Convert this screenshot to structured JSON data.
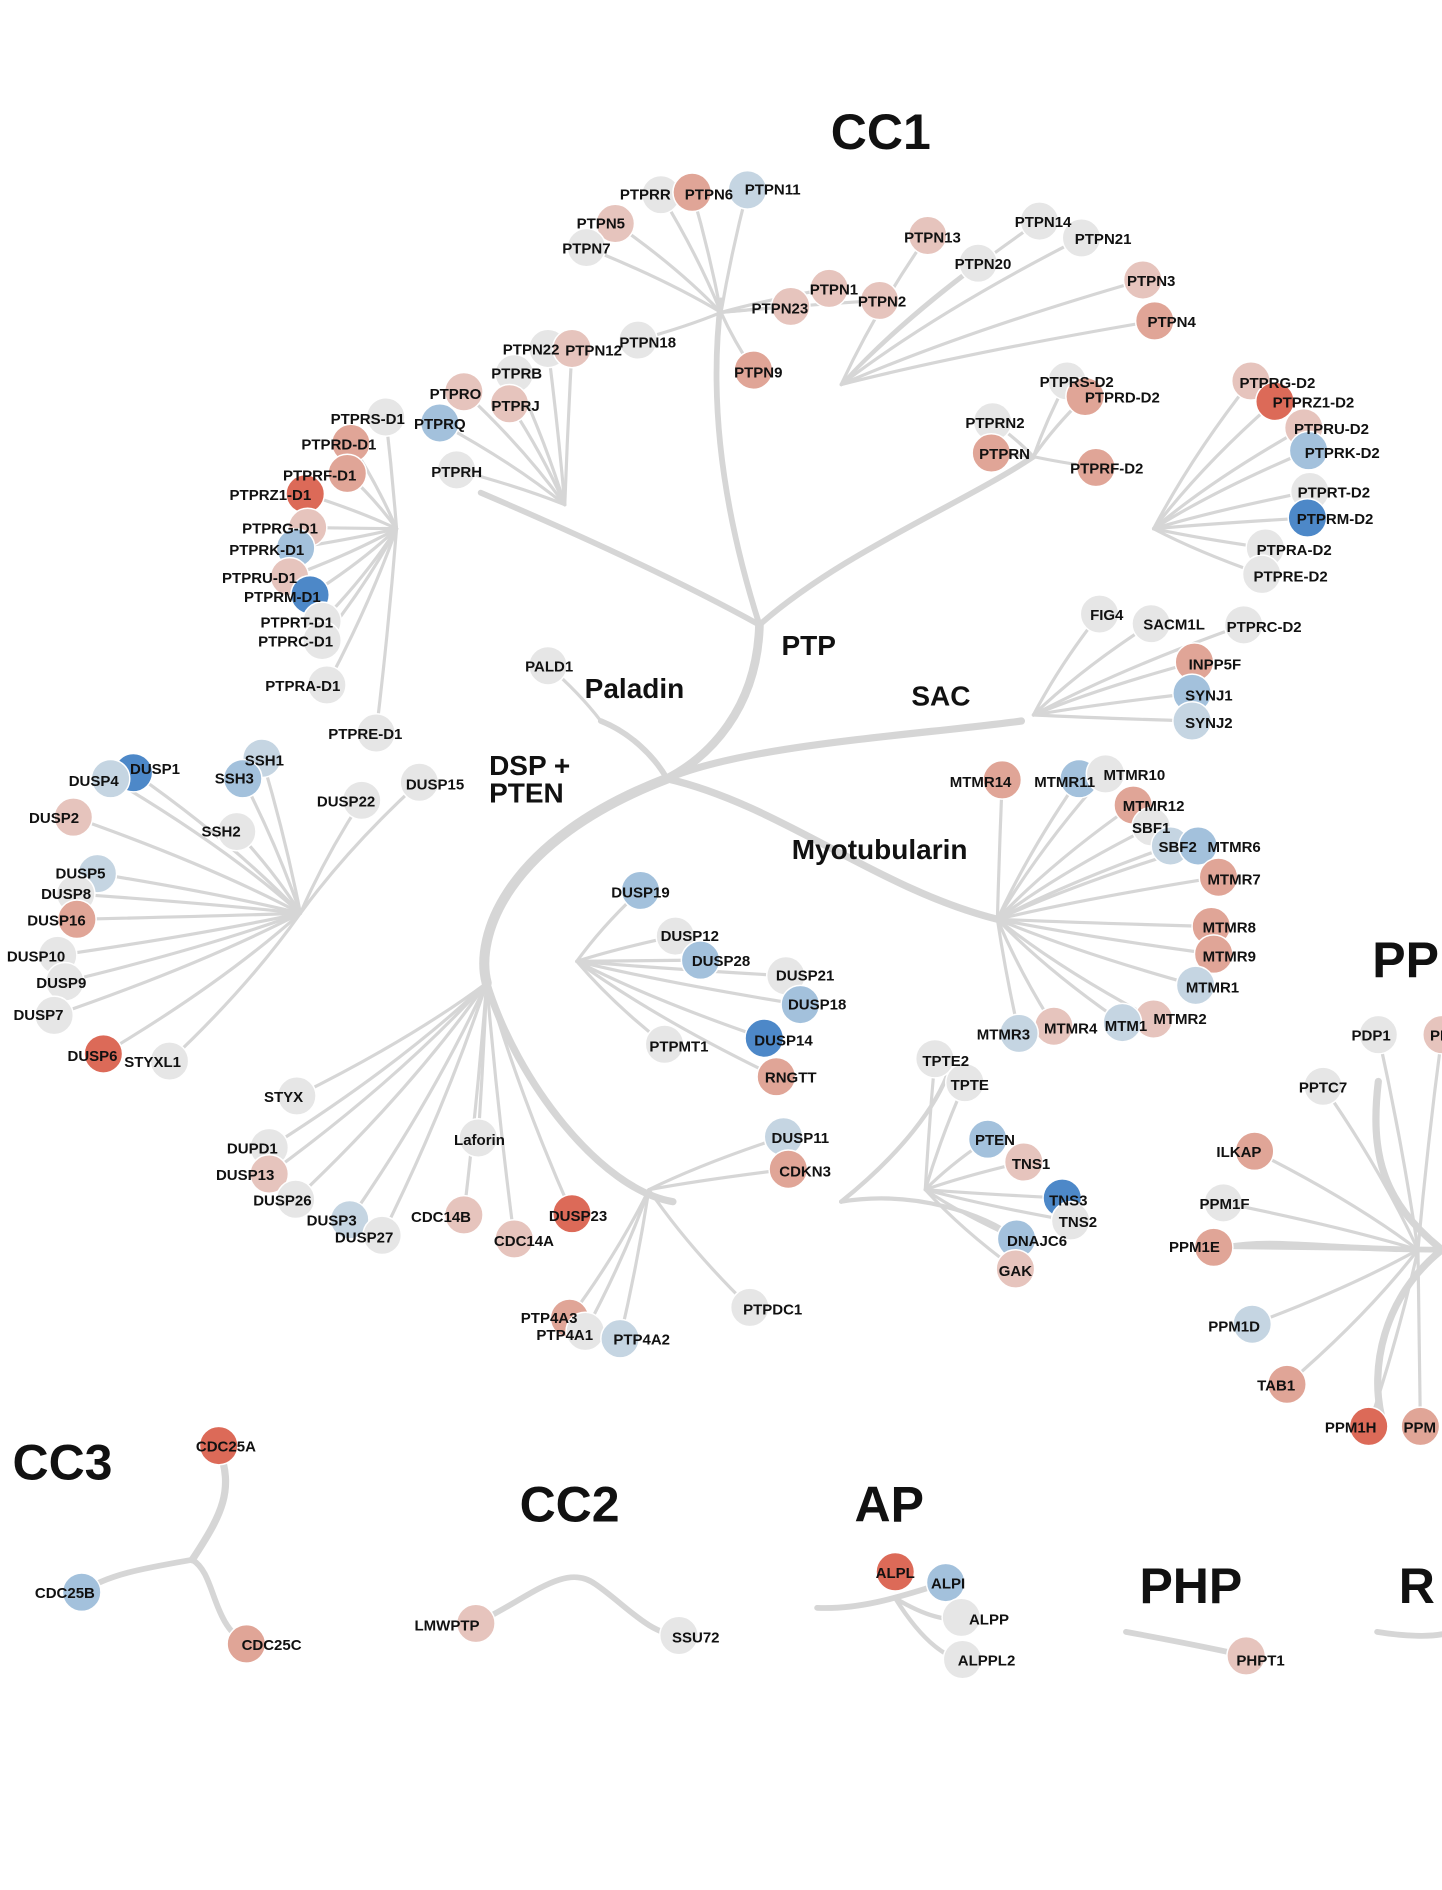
{
  "colors": {
    "branch": "#d6d6d6",
    "gray": "#e6e6e6",
    "pale_red": "#e6c4bd",
    "light_red": "#e0a597",
    "red": "#dc6a58",
    "pale_blue": "#c5d5e2",
    "light_blue": "#a3c1dc",
    "blue": "#4d88c8"
  },
  "families": [
    {
      "key": "cc1",
      "label": "CC1"
    },
    {
      "key": "cc3",
      "label": "CC3"
    },
    {
      "key": "cc2",
      "label": "CC2"
    },
    {
      "key": "ap",
      "label": "AP"
    },
    {
      "key": "php",
      "label": "PHP"
    },
    {
      "key": "ppm",
      "label": "PP"
    },
    {
      "key": "r",
      "label": "R"
    }
  ],
  "groups": [
    {
      "key": "ptp",
      "label": "PTP"
    },
    {
      "key": "paladin",
      "label": "Paladin"
    },
    {
      "key": "sac",
      "label": "SAC"
    },
    {
      "key": "dsp1",
      "label": "DSP +"
    },
    {
      "key": "dsp2",
      "label": "PTEN"
    },
    {
      "key": "myotubularin",
      "label": "Myotubularin"
    }
  ],
  "nodes": [
    {
      "name": "PTPRR",
      "color": "gray"
    },
    {
      "name": "PTPN6",
      "color": "light_red"
    },
    {
      "name": "PTPN11",
      "color": "pale_blue"
    },
    {
      "name": "PTPN5",
      "color": "pale_red"
    },
    {
      "name": "PTPN7",
      "color": "gray"
    },
    {
      "name": "PTPN18",
      "color": "gray"
    },
    {
      "name": "PTPN13",
      "color": "pale_red"
    },
    {
      "name": "PTPN14",
      "color": "gray"
    },
    {
      "name": "PTPN21",
      "color": "gray"
    },
    {
      "name": "PTPN20",
      "color": "gray"
    },
    {
      "name": "PTPN1",
      "color": "pale_red"
    },
    {
      "name": "PTPN2",
      "color": "pale_red"
    },
    {
      "name": "PTPN23",
      "color": "pale_red"
    },
    {
      "name": "PTPN3",
      "color": "pale_red"
    },
    {
      "name": "PTPN4",
      "color": "light_red"
    },
    {
      "name": "PTPN22",
      "color": "gray"
    },
    {
      "name": "PTPN12",
      "color": "pale_red"
    },
    {
      "name": "PTPN9",
      "color": "light_red"
    },
    {
      "name": "PTPRB",
      "color": "gray"
    },
    {
      "name": "PTPRJ",
      "color": "pale_red"
    },
    {
      "name": "PTPRO",
      "color": "pale_red"
    },
    {
      "name": "PTPRQ",
      "color": "light_blue"
    },
    {
      "name": "PTPRH",
      "color": "gray"
    },
    {
      "name": "PTPRS-D2",
      "color": "gray"
    },
    {
      "name": "PTPRD-D2",
      "color": "light_red"
    },
    {
      "name": "PTPRN2",
      "color": "gray"
    },
    {
      "name": "PTPRN",
      "color": "light_red"
    },
    {
      "name": "PTPRF-D2",
      "color": "light_red"
    },
    {
      "name": "PTPRG-D2",
      "color": "pale_red"
    },
    {
      "name": "PTPRZ1-D2",
      "color": "red"
    },
    {
      "name": "PTPRU-D2",
      "color": "pale_red"
    },
    {
      "name": "PTPRK-D2",
      "color": "light_blue"
    },
    {
      "name": "PTPRT-D2",
      "color": "gray"
    },
    {
      "name": "PTPRM-D2",
      "color": "blue"
    },
    {
      "name": "PTPRA-D2",
      "color": "gray"
    },
    {
      "name": "PTPRE-D2",
      "color": "gray"
    },
    {
      "name": "PTPRS-D1",
      "color": "gray"
    },
    {
      "name": "PTPRD-D1",
      "color": "light_red"
    },
    {
      "name": "PTPRF-D1",
      "color": "light_red"
    },
    {
      "name": "PTPRZ1-D1",
      "color": "red"
    },
    {
      "name": "PTPRG-D1",
      "color": "pale_red"
    },
    {
      "name": "PTPRK-D1",
      "color": "light_blue"
    },
    {
      "name": "PTPRU-D1",
      "color": "pale_red"
    },
    {
      "name": "PTPRM-D1",
      "color": "blue"
    },
    {
      "name": "PTPRT-D1",
      "color": "gray"
    },
    {
      "name": "PTPRC-D1",
      "color": "gray"
    },
    {
      "name": "PTPRA-D1",
      "color": "gray"
    },
    {
      "name": "PTPRE-D1",
      "color": "gray"
    },
    {
      "name": "PALD1",
      "color": "gray"
    },
    {
      "name": "FIG4",
      "color": "gray"
    },
    {
      "name": "SACM1L",
      "color": "gray"
    },
    {
      "name": "PTPRC-D2",
      "color": "gray"
    },
    {
      "name": "INPP5F",
      "color": "light_red"
    },
    {
      "name": "SYNJ1",
      "color": "light_blue"
    },
    {
      "name": "SYNJ2",
      "color": "pale_blue"
    },
    {
      "name": "MTMR14",
      "color": "light_red"
    },
    {
      "name": "MTMR11",
      "color": "light_blue"
    },
    {
      "name": "MTMR10",
      "color": "gray"
    },
    {
      "name": "MTMR12",
      "color": "light_red"
    },
    {
      "name": "SBF1",
      "color": "gray"
    },
    {
      "name": "SBF2",
      "color": "pale_blue"
    },
    {
      "name": "MTMR6",
      "color": "light_blue"
    },
    {
      "name": "MTMR7",
      "color": "light_red"
    },
    {
      "name": "MTMR8",
      "color": "light_red"
    },
    {
      "name": "MTMR9",
      "color": "light_red"
    },
    {
      "name": "MTMR1",
      "color": "pale_blue"
    },
    {
      "name": "MTMR2",
      "color": "pale_red"
    },
    {
      "name": "MTM1",
      "color": "pale_blue"
    },
    {
      "name": "MTMR4",
      "color": "pale_red"
    },
    {
      "name": "MTMR3",
      "color": "pale_blue"
    },
    {
      "name": "DUSP1",
      "color": "blue"
    },
    {
      "name": "DUSP4",
      "color": "pale_blue"
    },
    {
      "name": "SSH1",
      "color": "pale_blue"
    },
    {
      "name": "SSH3",
      "color": "light_blue"
    },
    {
      "name": "DUSP22",
      "color": "gray"
    },
    {
      "name": "DUSP15",
      "color": "gray"
    },
    {
      "name": "SSH2",
      "color": "gray"
    },
    {
      "name": "DUSP2",
      "color": "pale_red"
    },
    {
      "name": "DUSP5",
      "color": "pale_blue"
    },
    {
      "name": "DUSP8",
      "color": "gray"
    },
    {
      "name": "DUSP16",
      "color": "light_red"
    },
    {
      "name": "DUSP10",
      "color": "gray"
    },
    {
      "name": "DUSP9",
      "color": "gray"
    },
    {
      "name": "DUSP7",
      "color": "gray"
    },
    {
      "name": "DUSP6",
      "color": "red"
    },
    {
      "name": "STYXL1",
      "color": "gray"
    },
    {
      "name": "STYX",
      "color": "gray"
    },
    {
      "name": "DUSP19",
      "color": "light_blue"
    },
    {
      "name": "DUSP12",
      "color": "gray"
    },
    {
      "name": "DUSP28",
      "color": "light_blue"
    },
    {
      "name": "DUSP21",
      "color": "gray"
    },
    {
      "name": "DUSP18",
      "color": "light_blue"
    },
    {
      "name": "DUSP14",
      "color": "blue"
    },
    {
      "name": "PTPMT1",
      "color": "gray"
    },
    {
      "name": "RNGTT",
      "color": "light_red"
    },
    {
      "name": "Laforin",
      "color": "gray"
    },
    {
      "name": "DUPD1",
      "color": "gray"
    },
    {
      "name": "DUSP13",
      "color": "pale_red"
    },
    {
      "name": "DUSP26",
      "color": "gray"
    },
    {
      "name": "DUSP3",
      "color": "pale_blue"
    },
    {
      "name": "DUSP27",
      "color": "gray"
    },
    {
      "name": "CDC14B",
      "color": "pale_red"
    },
    {
      "name": "CDC14A",
      "color": "pale_red"
    },
    {
      "name": "DUSP23",
      "color": "red"
    },
    {
      "name": "PTP4A3",
      "color": "light_red"
    },
    {
      "name": "PTP4A1",
      "color": "gray"
    },
    {
      "name": "PTP4A2",
      "color": "pale_blue"
    },
    {
      "name": "PTPDC1",
      "color": "gray"
    },
    {
      "name": "DUSP11",
      "color": "pale_blue"
    },
    {
      "name": "CDKN3",
      "color": "light_red"
    },
    {
      "name": "TPTE2",
      "color": "gray"
    },
    {
      "name": "TPTE",
      "color": "gray"
    },
    {
      "name": "PTEN",
      "color": "light_blue"
    },
    {
      "name": "TNS1",
      "color": "pale_red"
    },
    {
      "name": "TNS3",
      "color": "blue"
    },
    {
      "name": "TNS2",
      "color": "gray"
    },
    {
      "name": "DNAJC6",
      "color": "light_blue"
    },
    {
      "name": "GAK",
      "color": "pale_red"
    },
    {
      "name": "PDP1",
      "color": "gray"
    },
    {
      "name": "PD",
      "color": "pale_red"
    },
    {
      "name": "PPTC7",
      "color": "gray"
    },
    {
      "name": "ILKAP",
      "color": "light_red"
    },
    {
      "name": "PPM1F",
      "color": "gray"
    },
    {
      "name": "PPM1E",
      "color": "light_red"
    },
    {
      "name": "PPM1D",
      "color": "pale_blue"
    },
    {
      "name": "TAB1",
      "color": "light_red"
    },
    {
      "name": "PPM1H",
      "color": "red"
    },
    {
      "name": "PPM",
      "color": "light_red"
    },
    {
      "name": "CDC25A",
      "color": "red"
    },
    {
      "name": "CDC25B",
      "color": "light_blue"
    },
    {
      "name": "CDC25C",
      "color": "light_red"
    },
    {
      "name": "LMWPTP",
      "color": "pale_red"
    },
    {
      "name": "SSU72",
      "color": "gray"
    },
    {
      "name": "ALPL",
      "color": "red"
    },
    {
      "name": "ALPI",
      "color": "light_blue"
    },
    {
      "name": "ALPP",
      "color": "gray"
    },
    {
      "name": "ALPPL2",
      "color": "gray"
    },
    {
      "name": "PHPT1",
      "color": "pale_red"
    }
  ]
}
